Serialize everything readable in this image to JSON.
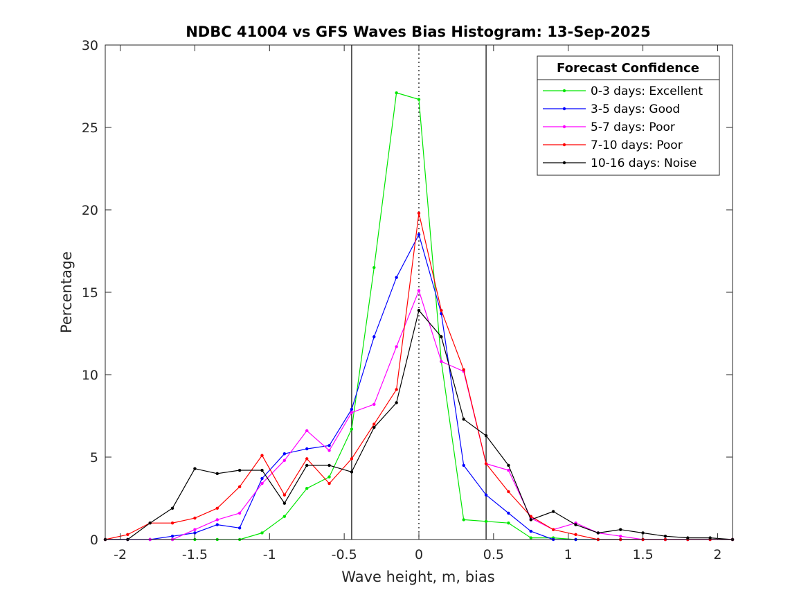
{
  "chart_data": {
    "type": "line",
    "title": "NDBC 41004 vs GFS Waves Bias Histogram: 13-Sep-2025",
    "xlabel": "Wave height, m, bias",
    "ylabel": "Percentage",
    "xlim": [
      -2.1,
      2.1
    ],
    "ylim": [
      0,
      30
    ],
    "xticks": [
      -2,
      -1.5,
      -1,
      -0.5,
      0,
      0.5,
      1,
      1.5,
      2
    ],
    "xtick_labels": [
      "-2",
      "-1.5",
      "-1",
      "-0.5",
      "0",
      "0.5",
      "1",
      "1.5",
      "2"
    ],
    "yticks": [
      0,
      5,
      10,
      15,
      20,
      25,
      30
    ],
    "ytick_labels": [
      "0",
      "5",
      "10",
      "15",
      "20",
      "25",
      "30"
    ],
    "vertical_lines": [
      {
        "x": -0.45,
        "style": "solid"
      },
      {
        "x": 0,
        "style": "dotted"
      },
      {
        "x": 0.45,
        "style": "solid"
      }
    ],
    "legend": {
      "title": "Forecast Confidence",
      "position": "top-right"
    },
    "x": [
      -2.1,
      -1.95,
      -1.8,
      -1.65,
      -1.5,
      -1.35,
      -1.2,
      -1.05,
      -0.9,
      -0.75,
      -0.6,
      -0.45,
      -0.3,
      -0.15,
      0,
      0.15,
      0.3,
      0.45,
      0.6,
      0.75,
      0.9,
      1.05,
      1.2,
      1.35,
      1.5,
      1.65,
      1.8,
      1.95,
      2.1
    ],
    "series": [
      {
        "name": "0-3 days: Excellent",
        "color": "#00e600",
        "values": [
          0,
          0,
          0,
          0,
          0,
          0,
          0,
          0.4,
          1.4,
          3.1,
          3.8,
          6.7,
          16.5,
          27.1,
          26.7,
          10.8,
          1.2,
          1.1,
          1.0,
          0.1,
          0.1,
          0,
          0,
          0,
          0,
          0,
          0,
          0,
          0
        ]
      },
      {
        "name": "3-5 days: Good",
        "color": "#0000ff",
        "values": [
          0,
          0,
          0,
          0.2,
          0.4,
          0.9,
          0.7,
          3.7,
          5.2,
          5.5,
          5.7,
          7.9,
          12.3,
          15.9,
          18.5,
          13.7,
          4.5,
          2.7,
          1.6,
          0.5,
          0,
          0,
          0,
          0,
          0,
          0,
          0,
          0,
          0
        ]
      },
      {
        "name": "5-7 days: Poor",
        "color": "#ff00ff",
        "values": [
          0,
          0,
          0,
          0,
          0.6,
          1.2,
          1.6,
          3.4,
          4.8,
          6.6,
          5.4,
          7.7,
          8.2,
          11.7,
          15.1,
          10.8,
          10.2,
          4.6,
          4.2,
          1.3,
          0.6,
          1.0,
          0.4,
          0.2,
          0,
          0,
          0,
          0,
          0
        ]
      },
      {
        "name": "7-10 days: Poor",
        "color": "#ff0000",
        "values": [
          0,
          0.3,
          1.0,
          1.0,
          1.3,
          1.9,
          3.2,
          5.1,
          2.7,
          4.9,
          3.4,
          4.9,
          7.0,
          9.1,
          19.8,
          13.9,
          10.3,
          4.6,
          2.9,
          1.4,
          0.6,
          0.3,
          0,
          0,
          0,
          0,
          0,
          0,
          0
        ]
      },
      {
        "name": "10-16 days: Noise",
        "color": "#000000",
        "values": [
          0,
          0,
          1.0,
          1.9,
          4.3,
          4.0,
          4.2,
          4.2,
          2.2,
          4.5,
          4.5,
          4.1,
          6.8,
          8.3,
          13.9,
          12.3,
          7.3,
          6.3,
          4.5,
          1.2,
          1.7,
          0.9,
          0.4,
          0.6,
          0.4,
          0.2,
          0.1,
          0.1,
          0
        ]
      }
    ]
  }
}
